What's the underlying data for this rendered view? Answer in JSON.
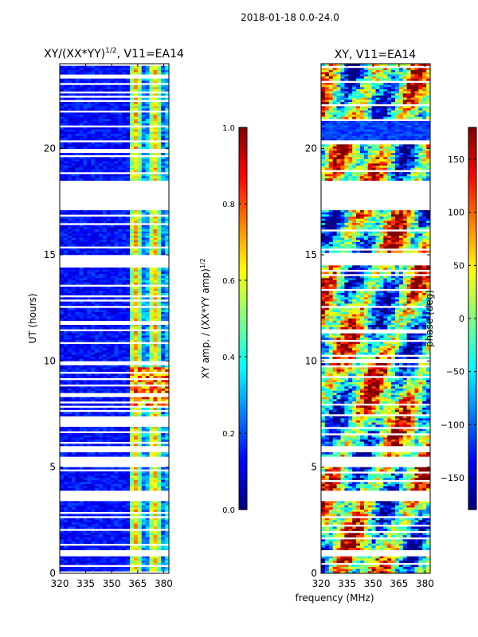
{
  "suptitle": "2018-01-18 0.0-24.0",
  "xlabel_shared": "frequency (MHz)",
  "chart_data": [
    {
      "type": "heatmap",
      "title_base": "XY/(XX*YY)",
      "title_exp": "1/2",
      "title_suffix": ", V11=EA14",
      "ylabel": "UT (hours)",
      "xlim": [
        320,
        383
      ],
      "ylim": [
        0,
        24
      ],
      "xticks": [
        320,
        335,
        350,
        365,
        380
      ],
      "yticks": [
        0,
        5,
        10,
        15,
        20
      ],
      "colorbar": {
        "label_base": "XY amp. / (XX*YY amp)",
        "label_exp": "1/2",
        "range": [
          0.0,
          1.0
        ],
        "ticks": [
          "0.0",
          "0.2",
          "0.4",
          "0.6",
          "0.8",
          "1.0"
        ],
        "tick_values": [
          0.0,
          0.2,
          0.4,
          0.6,
          0.8,
          1.0
        ]
      }
    },
    {
      "type": "heatmap",
      "title": "XY, V11=EA14",
      "xlim": [
        320,
        383
      ],
      "ylim": [
        0,
        24
      ],
      "xticks": [
        320,
        335,
        350,
        365,
        380
      ],
      "yticks": [
        0,
        5,
        10,
        15,
        20
      ],
      "colorbar": {
        "label": "phase (deg)",
        "range": [
          -180,
          180
        ],
        "ticks": [
          "150",
          "100",
          "50",
          "0",
          "−50",
          "−100",
          "−150"
        ],
        "tick_values": [
          150,
          100,
          50,
          0,
          -50,
          -100,
          -150
        ]
      }
    }
  ]
}
